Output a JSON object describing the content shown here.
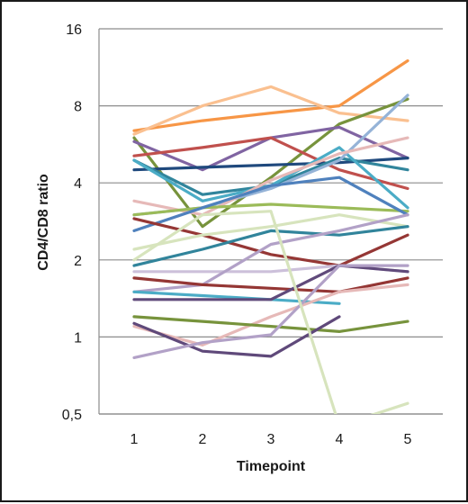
{
  "chart_data": {
    "type": "line",
    "title": "",
    "xlabel": "Timepoint",
    "ylabel": "CD4/CD8 ratio",
    "y_scale": "log2",
    "ylim": [
      0.5,
      16
    ],
    "y_ticks": [
      0.5,
      1,
      2,
      4,
      8,
      16
    ],
    "y_tick_labels": [
      "0,5",
      "1",
      "2",
      "4",
      "8",
      "16"
    ],
    "x": [
      1,
      2,
      3,
      4,
      5
    ],
    "x_tick_labels": [
      "1",
      "2",
      "3",
      "4",
      "5"
    ],
    "grid": "horizontal",
    "legend": "none",
    "series": [
      {
        "color": "#F79646",
        "values": [
          6.4,
          7.0,
          7.5,
          8.0,
          12.0
        ]
      },
      {
        "color": "#FAC090",
        "values": [
          6.2,
          8.0,
          9.5,
          7.5,
          7.0
        ]
      },
      {
        "color": "#77933C",
        "values": [
          6.0,
          2.7,
          4.2,
          6.8,
          8.5
        ]
      },
      {
        "color": "#8064A2",
        "values": [
          5.8,
          4.5,
          6.0,
          6.6,
          5.0
        ]
      },
      {
        "color": "#C0504D",
        "values": [
          5.1,
          5.5,
          6.0,
          4.5,
          3.8
        ]
      },
      {
        "color": "#1F497D",
        "values": [
          4.5,
          4.6,
          4.7,
          4.8,
          5.0
        ]
      },
      {
        "color": "#31859C",
        "values": [
          4.9,
          3.6,
          3.9,
          5.0,
          4.5
        ]
      },
      {
        "color": "#4BACC6",
        "values": [
          4.9,
          3.4,
          3.9,
          5.5,
          3.2
        ]
      },
      {
        "color": "#95B3D7",
        "values": [
          3.0,
          3.2,
          3.8,
          4.9,
          8.8
        ]
      },
      {
        "color": "#E6B9B8",
        "values": [
          3.4,
          3.0,
          4.1,
          5.2,
          6.0
        ]
      },
      {
        "color": "#9BBB59",
        "values": [
          3.0,
          3.2,
          3.3,
          3.2,
          3.1
        ]
      },
      {
        "color": "#4F81BD",
        "values": [
          2.6,
          3.2,
          3.9,
          4.2,
          3.0
        ]
      },
      {
        "color": "#953735",
        "values": [
          2.9,
          2.5,
          2.1,
          1.9,
          2.5
        ]
      },
      {
        "color": "#D7E4BD",
        "values": [
          2.2,
          2.5,
          2.7,
          3.0,
          2.7
        ]
      },
      {
        "color": "#31849B",
        "values": [
          1.9,
          2.2,
          2.6,
          2.5,
          2.7
        ]
      },
      {
        "color": "#CCC0DA",
        "values": [
          1.8,
          1.8,
          1.8,
          1.9,
          1.8
        ]
      },
      {
        "color": "#B2A1C7",
        "values": [
          1.5,
          1.6,
          2.3,
          2.6,
          3.0
        ]
      },
      {
        "color": "#943634",
        "values": [
          1.7,
          1.6,
          1.55,
          1.5,
          1.7
        ]
      },
      {
        "color": "#4BACC6",
        "values": [
          1.5,
          1.45,
          1.4,
          1.35,
          null
        ]
      },
      {
        "color": "#604A7B",
        "values": [
          1.4,
          1.4,
          1.4,
          1.9,
          1.8
        ]
      },
      {
        "color": "#E6B9B8",
        "values": [
          1.1,
          0.93,
          1.2,
          1.5,
          1.6
        ]
      },
      {
        "color": "#77933C",
        "values": [
          1.2,
          1.15,
          1.1,
          1.05,
          1.15
        ]
      },
      {
        "color": "#5F497A",
        "values": [
          1.13,
          0.88,
          0.84,
          1.2,
          null
        ]
      },
      {
        "color": "#B2A1C7",
        "values": [
          0.83,
          0.95,
          1.02,
          1.9,
          1.9
        ]
      },
      {
        "color": "#D7E4BD",
        "values": [
          2.0,
          3.0,
          3.1,
          0.45,
          0.55
        ]
      }
    ]
  }
}
